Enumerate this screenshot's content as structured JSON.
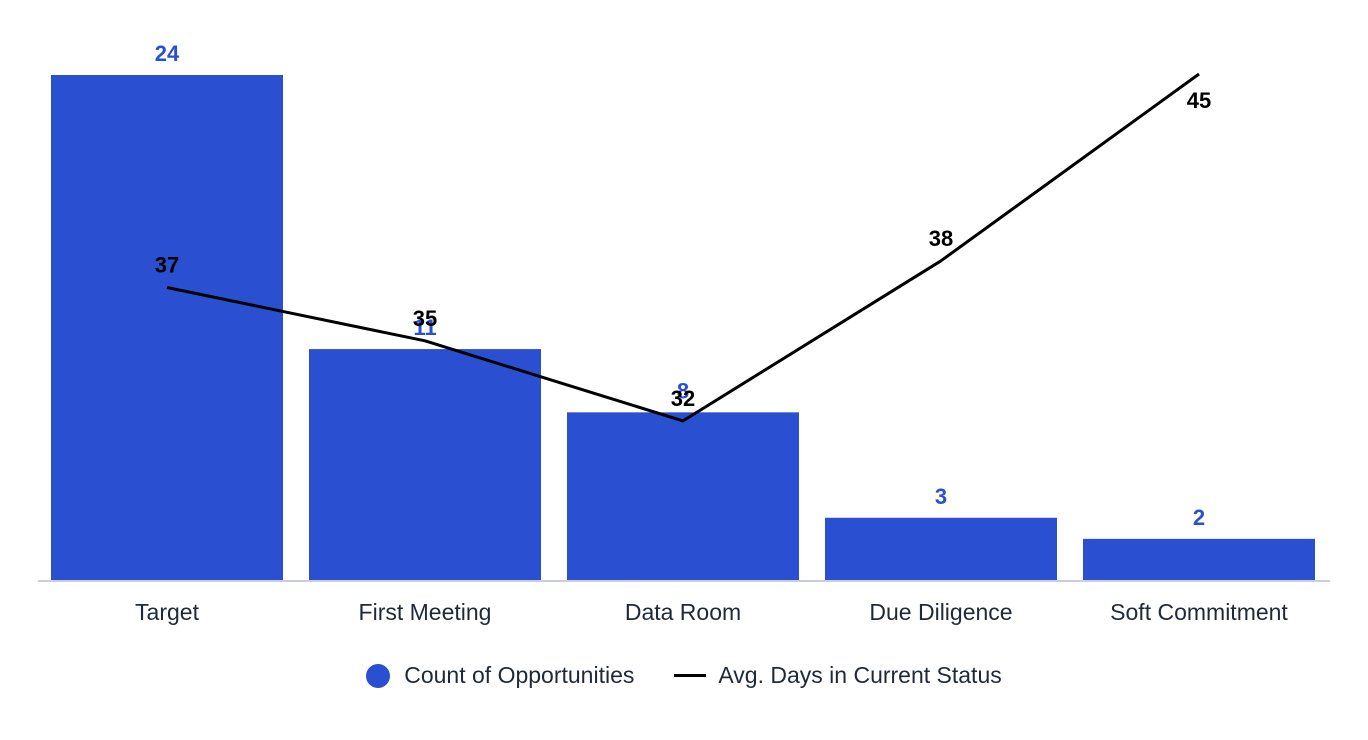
{
  "chart_data": {
    "type": "bar",
    "categories": [
      "Target",
      "First Meeting",
      "Data Room",
      "Due Diligence",
      "Soft Commitment"
    ],
    "series": [
      {
        "name": "Count of Opportunities",
        "type": "bar",
        "axis": "left",
        "color": "#2a4fd0",
        "values": [
          24,
          11,
          8,
          3,
          2
        ]
      },
      {
        "name": "Avg. Days in Current Status",
        "type": "line",
        "axis": "right",
        "color": "#000000",
        "values": [
          37,
          35,
          32,
          38,
          45
        ]
      }
    ],
    "ylim_left": [
      0,
      24
    ],
    "ylim_right": [
      26,
      45
    ],
    "grid": false,
    "legend_position": "bottom"
  }
}
